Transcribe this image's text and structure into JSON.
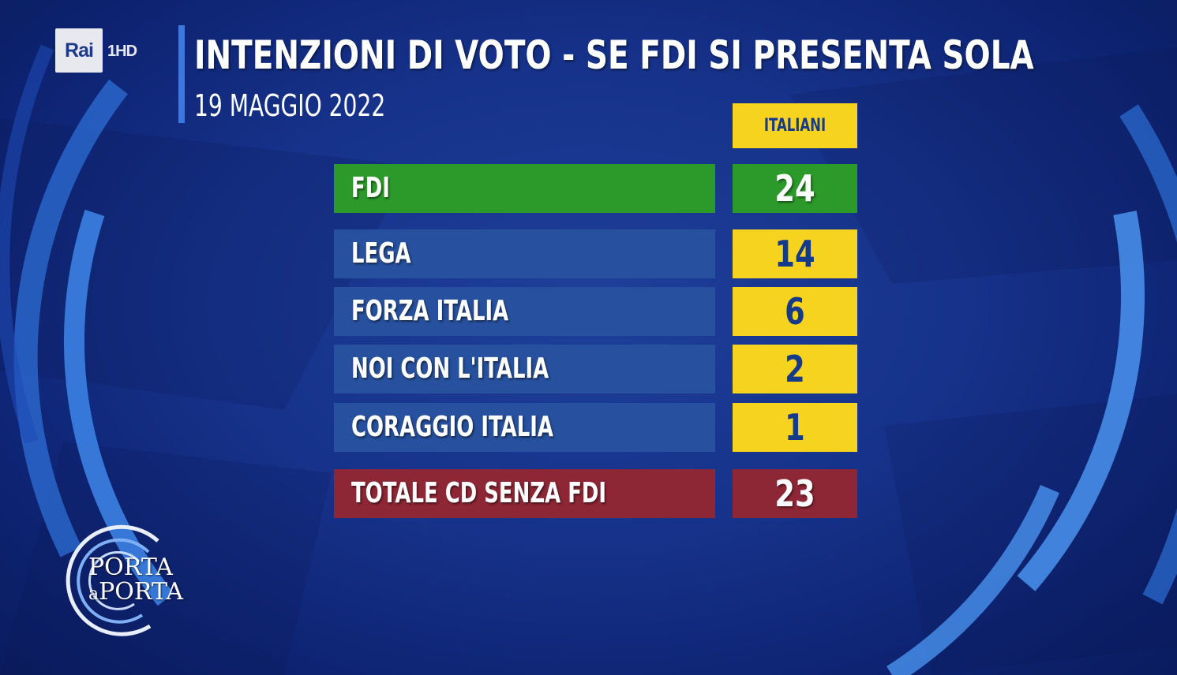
{
  "broadcaster": {
    "logo": "Rai",
    "channel": "1HD"
  },
  "header": {
    "title": "INTENZIONI DI VOTO - SE FDI SI PRESENTA SOLA",
    "subtitle": "19 MAGGIO 2022"
  },
  "chart_data": {
    "type": "table",
    "title": "INTENZIONI DI VOTO - SE FDI SI PRESENTA SOLA",
    "subtitle": "19 MAGGIO 2022",
    "column_header": "ITALIANI",
    "rows": [
      {
        "label": "FDI",
        "value": 24,
        "style": "highlight"
      },
      {
        "label": "LEGA",
        "value": 14,
        "style": "normal"
      },
      {
        "label": "FORZA ITALIA",
        "value": 6,
        "style": "normal"
      },
      {
        "label": "NOI CON L'ITALIA",
        "value": 2,
        "style": "normal"
      },
      {
        "label": "CORAGGIO ITALIA",
        "value": 1,
        "style": "normal"
      },
      {
        "label": "TOTALE CD SENZA FDI",
        "value": 23,
        "style": "total"
      }
    ]
  },
  "colors": {
    "highlight_row": "#2c9a2a",
    "normal_label": "#27519e",
    "normal_value": "#f6d31e",
    "value_text": "#163a8a",
    "total_row": "#8e2735",
    "accent": "#3c78e0"
  },
  "program_logo": {
    "line1": "PORTA",
    "line2_prefix": "a",
    "line2": "PORTA"
  }
}
